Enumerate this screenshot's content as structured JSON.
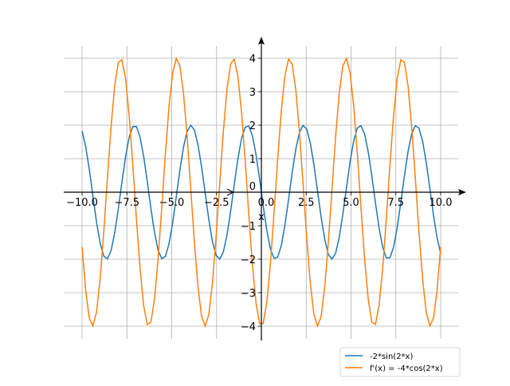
{
  "chart_data": {
    "type": "line",
    "title": "",
    "xlabel": "x",
    "ylabel": "",
    "xlim": [
      -10,
      10
    ],
    "ylim": [
      -4,
      4
    ],
    "grid": true,
    "x_ticks": [
      -10,
      -7.5,
      -5,
      -2.5,
      0,
      2.5,
      5,
      7.5,
      10
    ],
    "x_tick_labels": [
      "−10.0",
      "−7.5",
      "−5.0",
      "−2.5",
      "0.0",
      "2.5",
      "5.0",
      "7.5",
      "10.0"
    ],
    "y_ticks": [
      -4,
      -3,
      -2,
      -1,
      0,
      1,
      2,
      3,
      4
    ],
    "y_tick_labels": [
      "−4",
      "−3",
      "−2",
      "−1",
      "0",
      "1",
      "2",
      "3",
      "4"
    ],
    "legend_position": "right",
    "sampling": {
      "start": -10,
      "stop": 10,
      "num": 100
    },
    "series": [
      {
        "name": "-2*sin(2*x)",
        "amplitude": -2,
        "func": "sin",
        "freq": 2,
        "color": "#1f77b4"
      },
      {
        "name": "f'(x) = -4*cos(2*x)",
        "amplitude": -4,
        "func": "cos",
        "freq": 2,
        "color": "#ff7f0e"
      }
    ]
  }
}
